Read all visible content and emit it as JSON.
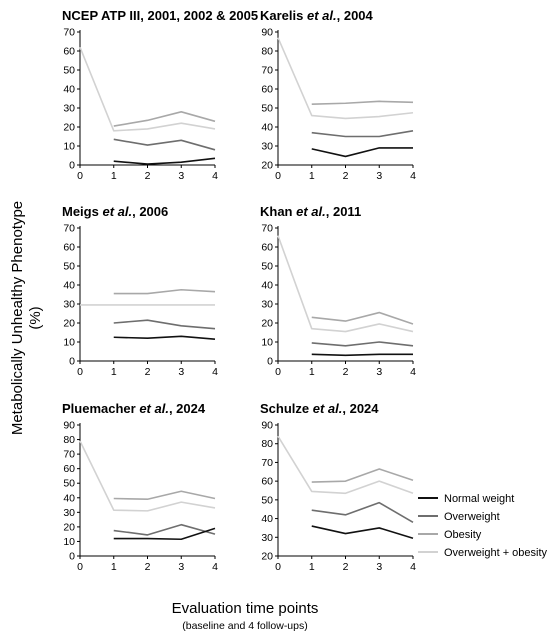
{
  "figure": {
    "ylabel_line1": "Metabolically Unhealthy Phenotype",
    "ylabel_line2": "(%)",
    "xlabel": "Evaluation time points",
    "xlabel_sub": "(baseline and 4 follow-ups)"
  },
  "legend": [
    {
      "name": "Normal weight",
      "color": "#111111"
    },
    {
      "name": "Overweight",
      "color": "#6e6e6e"
    },
    {
      "name": "Obesity",
      "color": "#a8a8a8"
    },
    {
      "name": "Overweight + obesity",
      "color": "#d2d2d2"
    }
  ],
  "chart_data": [
    {
      "type": "line",
      "title_parts": [
        {
          "text": "NCEP ATP III, 2001, 2002 & 2005",
          "italic": false
        }
      ],
      "x": [
        0,
        1,
        2,
        3,
        4
      ],
      "ylim": [
        0,
        70
      ],
      "yticks": [
        0,
        10,
        20,
        30,
        40,
        50,
        60,
        70
      ],
      "series": [
        {
          "name": "Normal weight",
          "values": [
            null,
            2,
            0.5,
            1.5,
            3.5
          ]
        },
        {
          "name": "Overweight",
          "values": [
            null,
            13.5,
            10.5,
            13,
            8
          ]
        },
        {
          "name": "Obesity",
          "values": [
            null,
            20.5,
            23.5,
            28,
            23
          ]
        },
        {
          "name": "Overweight + obesity",
          "values": [
            62,
            18,
            19,
            22,
            19
          ]
        }
      ]
    },
    {
      "type": "line",
      "title_parts": [
        {
          "text": "Karelis ",
          "italic": false
        },
        {
          "text": "et al.",
          "italic": true
        },
        {
          "text": ", 2004",
          "italic": false
        }
      ],
      "x": [
        0,
        1,
        2,
        3,
        4
      ],
      "ylim": [
        20,
        90
      ],
      "yticks": [
        20,
        30,
        40,
        50,
        60,
        70,
        80,
        90
      ],
      "series": [
        {
          "name": "Normal weight",
          "values": [
            null,
            28.5,
            24.5,
            29,
            29
          ]
        },
        {
          "name": "Overweight",
          "values": [
            null,
            37,
            35,
            35,
            38
          ]
        },
        {
          "name": "Obesity",
          "values": [
            null,
            52,
            52.5,
            53.5,
            53
          ]
        },
        {
          "name": "Overweight + obesity",
          "values": [
            87,
            46,
            44.5,
            45.5,
            47.5
          ]
        }
      ]
    },
    {
      "type": "line",
      "title_parts": [
        {
          "text": "Meigs ",
          "italic": false
        },
        {
          "text": "et al.",
          "italic": true
        },
        {
          "text": ", 2006",
          "italic": false
        }
      ],
      "x": [
        0,
        1,
        2,
        3,
        4
      ],
      "ylim": [
        0,
        70
      ],
      "yticks": [
        0,
        10,
        20,
        30,
        40,
        50,
        60,
        70
      ],
      "series": [
        {
          "name": "Normal weight",
          "values": [
            null,
            12.5,
            12,
            13,
            11.5
          ]
        },
        {
          "name": "Overweight",
          "values": [
            null,
            20,
            21.5,
            18.5,
            17
          ]
        },
        {
          "name": "Obesity",
          "values": [
            null,
            35.5,
            35.5,
            37.5,
            36.5
          ]
        },
        {
          "name": "Overweight + obesity",
          "values": [
            29.5,
            29.5,
            29.5,
            29.5,
            29.5
          ]
        }
      ]
    },
    {
      "type": "line",
      "title_parts": [
        {
          "text": "Khan ",
          "italic": false
        },
        {
          "text": "et al.",
          "italic": true
        },
        {
          "text": ", 2011",
          "italic": false
        }
      ],
      "x": [
        0,
        1,
        2,
        3,
        4
      ],
      "ylim": [
        0,
        70
      ],
      "yticks": [
        0,
        10,
        20,
        30,
        40,
        50,
        60,
        70
      ],
      "series": [
        {
          "name": "Normal weight",
          "values": [
            null,
            3.5,
            3,
            3.5,
            3.5
          ]
        },
        {
          "name": "Overweight",
          "values": [
            null,
            9.5,
            8,
            10,
            8
          ]
        },
        {
          "name": "Obesity",
          "values": [
            null,
            23,
            21,
            25.5,
            19.5
          ]
        },
        {
          "name": "Overweight + obesity",
          "values": [
            66,
            17,
            15.5,
            19.5,
            15.5
          ]
        }
      ]
    },
    {
      "type": "line",
      "title_parts": [
        {
          "text": "Pluemacher ",
          "italic": false
        },
        {
          "text": "et al.",
          "italic": true
        },
        {
          "text": ", 2024",
          "italic": false
        }
      ],
      "x": [
        0,
        1,
        2,
        3,
        4
      ],
      "ylim": [
        0,
        90
      ],
      "yticks": [
        0,
        10,
        20,
        30,
        40,
        50,
        60,
        70,
        80,
        90
      ],
      "series": [
        {
          "name": "Normal weight",
          "values": [
            null,
            12,
            12,
            11.5,
            19
          ]
        },
        {
          "name": "Overweight",
          "values": [
            null,
            17.5,
            14.5,
            21.5,
            15
          ]
        },
        {
          "name": "Obesity",
          "values": [
            null,
            39.5,
            39,
            44.5,
            39.5
          ]
        },
        {
          "name": "Overweight + obesity",
          "values": [
            79,
            31.5,
            31,
            37,
            33
          ]
        }
      ]
    },
    {
      "type": "line",
      "title_parts": [
        {
          "text": "Schulze ",
          "italic": false
        },
        {
          "text": "et al.",
          "italic": true
        },
        {
          "text": ", 2024",
          "italic": false
        }
      ],
      "x": [
        0,
        1,
        2,
        3,
        4
      ],
      "ylim": [
        20,
        90
      ],
      "yticks": [
        20,
        30,
        40,
        50,
        60,
        70,
        80,
        90
      ],
      "series": [
        {
          "name": "Normal weight",
          "values": [
            null,
            36,
            32,
            35,
            29.5
          ]
        },
        {
          "name": "Overweight",
          "values": [
            null,
            44.5,
            42,
            48.5,
            38
          ]
        },
        {
          "name": "Obesity",
          "values": [
            null,
            59.5,
            60,
            66.5,
            60.5
          ]
        },
        {
          "name": "Overweight + obesity",
          "values": [
            84,
            54.5,
            53.5,
            60,
            53.5
          ]
        }
      ]
    }
  ]
}
